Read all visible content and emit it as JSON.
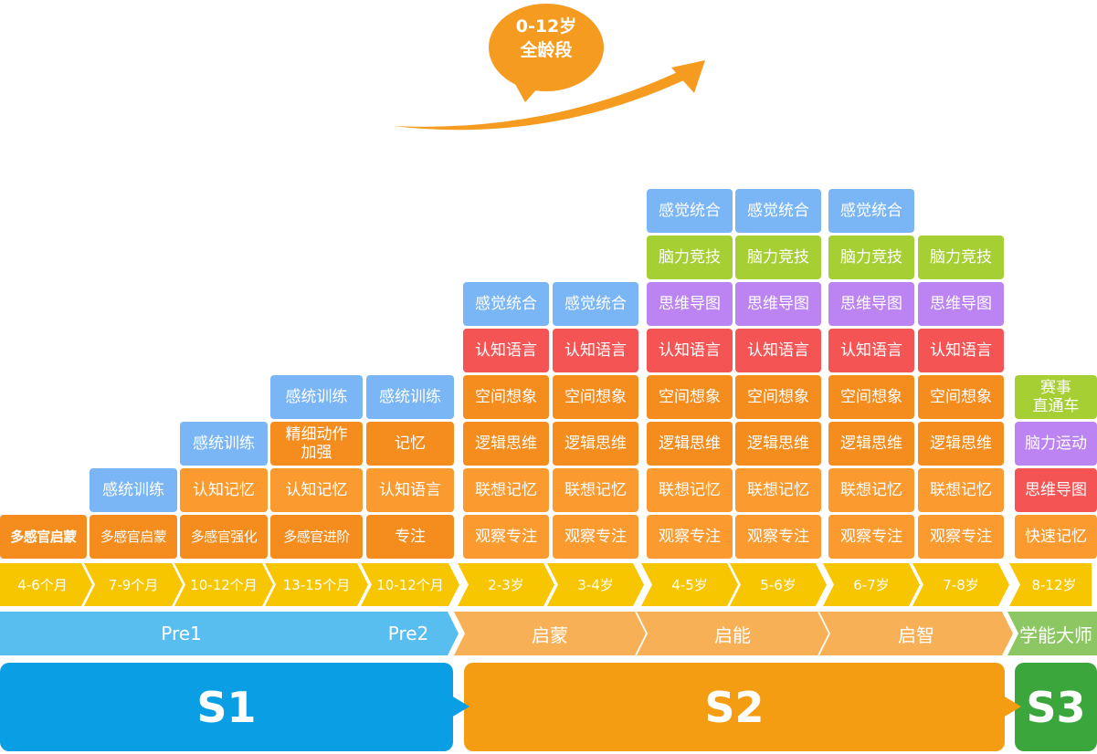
{
  "bubble": {
    "line1": "0-12岁",
    "line2": "全龄段"
  },
  "colors": {
    "blue": "#7AB6F5",
    "orange": "#FB9A2E",
    "dark_orange": "#F58C1E",
    "red": "#F55454",
    "purple": "#BC84F2",
    "green": "#A5CF33",
    "yellow": "#F8C600",
    "pre": "#58BDEF",
    "s2_phase": "#F7B056",
    "s3_phase": "#8CC763",
    "s1": "#0A9FE4",
    "s2": "#F49D12",
    "s3": "#3AA63C",
    "arrow": "#F59B20"
  },
  "stages": [
    "S1",
    "S2",
    "S3"
  ],
  "phases": [
    "Pre1",
    "Pre2",
    "启蒙",
    "启能",
    "启智",
    "学能大师"
  ],
  "ages": [
    "4-6个月",
    "7-9个月",
    "10-12个月",
    "13-15个月",
    "10-12个月",
    "2-3岁",
    "3-4岁",
    "4-5岁",
    "5-6岁",
    "6-7岁",
    "7-8岁",
    "8-12岁"
  ],
  "columns": [
    {
      "items": [
        "多感官启蒙"
      ]
    },
    {
      "items": [
        "多感官启蒙",
        "感统训练"
      ]
    },
    {
      "items": [
        "多感官强化",
        "认知记忆",
        "感统训练"
      ]
    },
    {
      "items": [
        "多感官进阶",
        "认知记忆",
        "精细动作\n加强",
        "感统训练"
      ]
    },
    {
      "items": [
        "专注",
        "认知语言",
        "记忆",
        "感统训练"
      ]
    },
    {
      "items": [
        "观察专注",
        "联想记忆",
        "逻辑思维",
        "空间想象",
        "认知语言",
        "感觉统合"
      ]
    },
    {
      "items": [
        "观察专注",
        "联想记忆",
        "逻辑思维",
        "空间想象",
        "认知语言",
        "感觉统合"
      ]
    },
    {
      "items": [
        "观察专注",
        "联想记忆",
        "逻辑思维",
        "空间想象",
        "认知语言",
        "思维导图",
        "脑力竞技",
        "感觉统合"
      ]
    },
    {
      "items": [
        "观察专注",
        "联想记忆",
        "逻辑思维",
        "空间想象",
        "认知语言",
        "思维导图",
        "脑力竞技",
        "感觉统合"
      ]
    },
    {
      "items": [
        "观察专注",
        "联想记忆",
        "逻辑思维",
        "空间想象",
        "认知语言",
        "思维导图",
        "脑力竞技",
        "感觉统合"
      ]
    },
    {
      "items": [
        "观察专注",
        "联想记忆",
        "逻辑思维",
        "空间想象",
        "认知语言",
        "思维导图",
        "脑力竞技"
      ]
    },
    {
      "items": [
        "快速记忆",
        "思维导图",
        "脑力运动",
        "赛事\n直通车"
      ]
    }
  ]
}
